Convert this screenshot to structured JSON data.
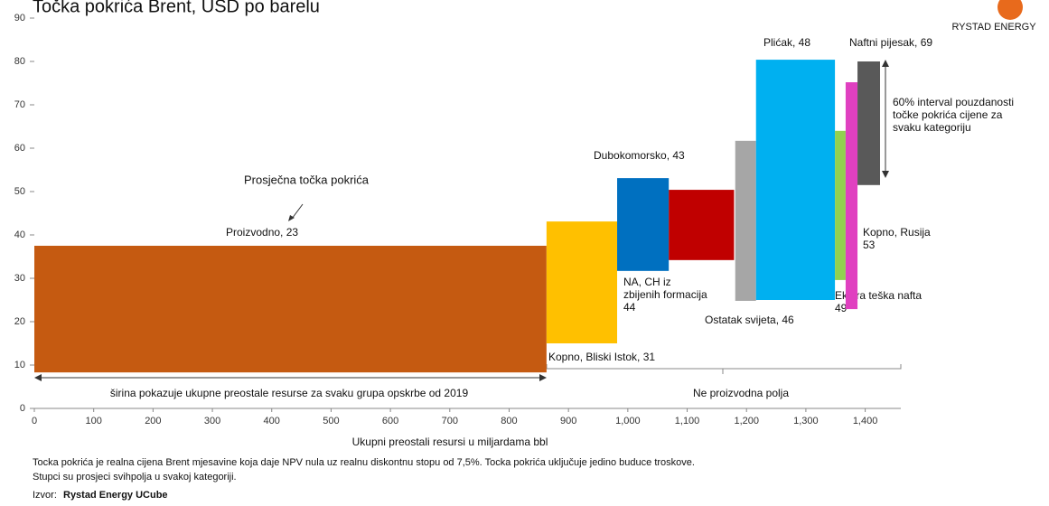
{
  "chart_data": {
    "type": "floating_bar",
    "title": "Točka pokrića Brent, USD po barelu",
    "logo": "RYSTAD ENERGY",
    "x_label": "Ukupni preostali resursi u miljardama bbl",
    "categories": [
      "Proizvodno, 23",
      "Kopno, Bliski Istok, 31",
      "Dubokomorsko, 43",
      "NA, CH iz\nzbijenih formacija\n44",
      "Ostatak svijeta, 46",
      "Plićak, 48",
      "Ekstra teška nafta\n49",
      "Kopno, Rusija\n53",
      "Naftni pijesak, 69"
    ],
    "x_start": [
      0,
      863,
      982,
      1069,
      1181,
      1216,
      1349,
      1367,
      1387
    ],
    "x_end": [
      863,
      982,
      1069,
      1179,
      1216,
      1349,
      1367,
      1387,
      1425
    ],
    "low": [
      8.3,
      15,
      31.7,
      34.2,
      24.8,
      25,
      29.6,
      22.9,
      51.5
    ],
    "high": [
      37.5,
      43.1,
      53.1,
      50.4,
      61.7,
      80.4,
      64,
      75.2,
      80
    ],
    "colors": [
      "#c55a11",
      "#ffc000",
      "#0070c0",
      "#c00000",
      "#a6a6a6",
      "#00b0f0",
      "#92d050",
      "#e040c0",
      "#595959"
    ],
    "xlim": [
      0,
      1460
    ],
    "xticks": [
      0,
      100,
      200,
      300,
      400,
      500,
      600,
      700,
      800,
      900,
      {
        "value": 1000,
        "label": "1,000"
      },
      {
        "value": 1100,
        "label": "1,100"
      },
      {
        "value": 1200,
        "label": "1,200"
      },
      {
        "value": 1300,
        "label": "1,300"
      },
      {
        "value": 1400,
        "label": "1,400"
      }
    ],
    "ylim": [
      0,
      90
    ],
    "yticks": [
      0,
      10,
      20,
      30,
      40,
      50,
      60,
      70,
      80,
      90
    ],
    "annotations": {
      "average": "Prosječna točka pokrića",
      "interval": "60% interval pouzdanosti\ntočke pokrića cijene za\nsvaku kategoriju",
      "width_note": "širina pokazuje ukupne preostale resurse za svaku grupa opskrbe od 2019",
      "non_producing": "Ne proizvodna polja"
    },
    "footnote": [
      "Tocka pokrića je realna cijena Brent mjesavine koja daje NPV nula uz realnu diskontnu stopu od 7,5%. Tocka pokrića uključuje jedino buduce troskove.",
      "Stupci su prosjeci svihpolja u svakoj kategoriji."
    ],
    "source_prefix": "Izvor:",
    "source": "Rystad Energy UCube"
  }
}
